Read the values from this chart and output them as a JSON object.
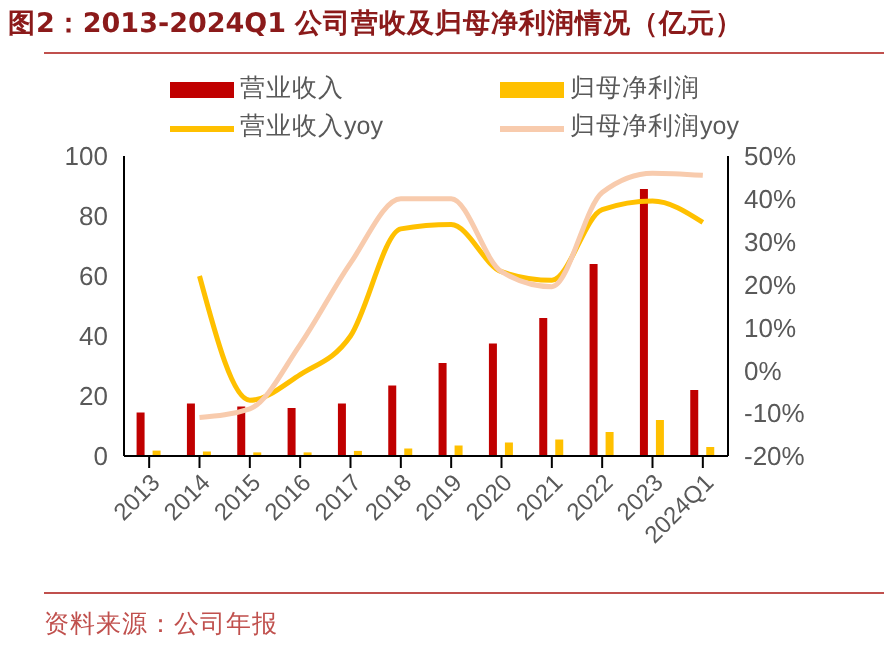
{
  "chart_data": {
    "type": "bar",
    "title": "图2：2013-2024Q1 公司营收及归母净利润情况（亿元）",
    "annotations": [
      "资料来源：公司年报"
    ],
    "categories": [
      "2013",
      "2014",
      "2015",
      "2016",
      "2017",
      "2018",
      "2019",
      "2020",
      "2021",
      "2022",
      "2023",
      "2024Q1"
    ],
    "series": [
      {
        "name": "营业收入",
        "color": "#c00000",
        "values": [
          14.5,
          17.5,
          16.5,
          16,
          17.5,
          23.5,
          31,
          37.5,
          46,
          64,
          89,
          22
        ]
      },
      {
        "name": "归母净利润",
        "color": "#ffc000",
        "values": [
          1.8,
          1.5,
          1.2,
          1.2,
          1.7,
          2.5,
          3.5,
          4.5,
          5.5,
          8,
          12,
          3
        ]
      },
      {
        "name": "营业收入yoy",
        "type": "line",
        "axis": "y2",
        "color": "#ffc000",
        "values": [
          null,
          22,
          -7,
          -1,
          8,
          33,
          34,
          23,
          21,
          37.5,
          39.5,
          34.5
        ]
      },
      {
        "name": "归母净利润yoy",
        "type": "line",
        "axis": "y2",
        "color": "#f8cbad",
        "values": [
          null,
          -11,
          -9,
          6,
          25,
          40,
          40,
          23,
          19.5,
          41.5,
          46,
          45.5
        ]
      }
    ],
    "ylim": [
      0,
      100
    ],
    "yticks": [
      0,
      20,
      40,
      60,
      80,
      100
    ],
    "y2lim": [
      -20,
      50
    ],
    "y2ticks": [
      {
        "value": -20,
        "label": "-20%"
      },
      {
        "value": -10,
        "label": "-10%"
      },
      {
        "value": 0,
        "label": "0%"
      },
      {
        "value": 10,
        "label": "10%"
      },
      {
        "value": 20,
        "label": "20%"
      },
      {
        "value": 30,
        "label": "30%"
      },
      {
        "value": 40,
        "label": "40%"
      },
      {
        "value": 50,
        "label": "50%"
      }
    ],
    "legend": "top",
    "grid": false,
    "marker": "none"
  }
}
